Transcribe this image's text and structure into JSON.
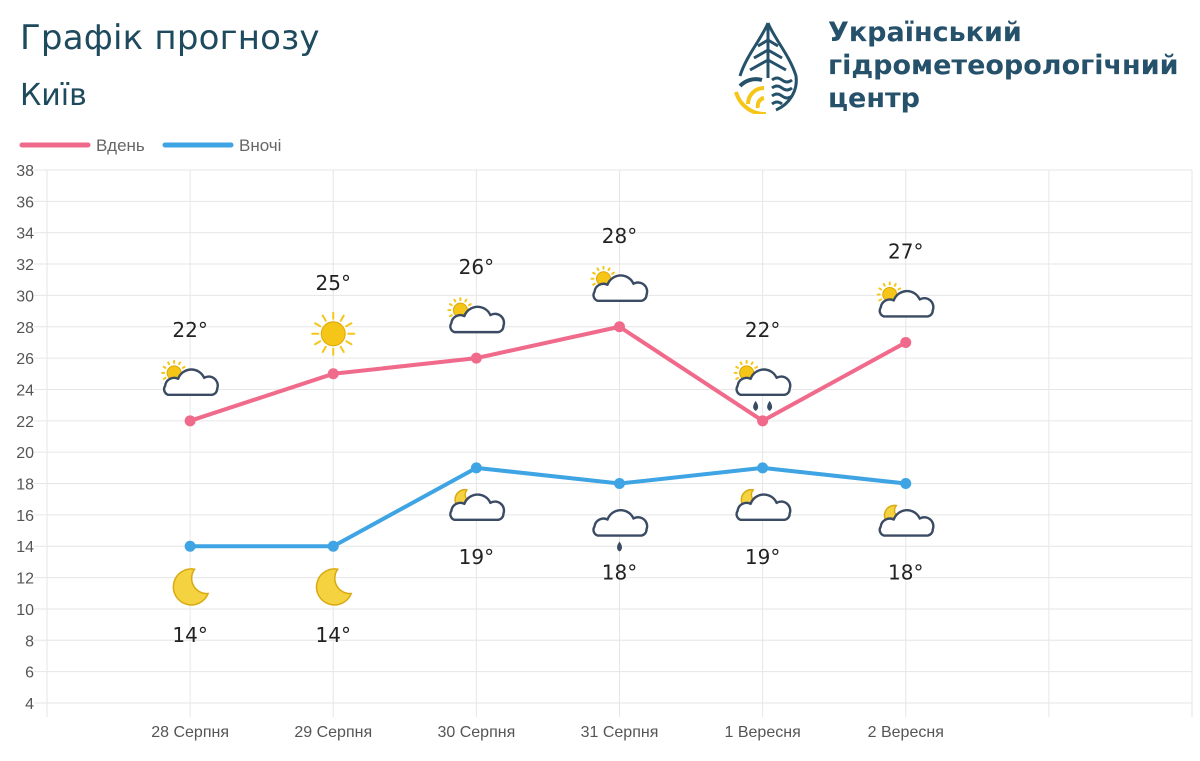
{
  "header": {
    "title": "Графік прогнозу",
    "city": "Київ"
  },
  "logo": {
    "line1": "Український",
    "line2": "гідрометеорологічний",
    "line3": "центр"
  },
  "colors": {
    "day": "#f06b8b",
    "night": "#3fa4e3",
    "text_dark": "#1e4a5e",
    "grid": "#e6e6e6",
    "cloud_stroke": "#3a4b63",
    "sun": "#f5c518",
    "moon": "#f5d240"
  },
  "chart_data": {
    "type": "line",
    "categories": [
      "28 Серпня",
      "29 Серпня",
      "30 Серпня",
      "31 Серпня",
      "1 Вересня",
      "2 Вересня"
    ],
    "series": [
      {
        "name": "Вдень",
        "values": [
          22,
          25,
          26,
          28,
          22,
          27
        ]
      },
      {
        "name": "Вночі",
        "values": [
          14,
          14,
          19,
          18,
          19,
          18
        ]
      }
    ],
    "labels": {
      "day": [
        "22°",
        "25°",
        "26°",
        "28°",
        "22°",
        "27°"
      ],
      "night": [
        "14°",
        "14°",
        "19°",
        "18°",
        "19°",
        "18°"
      ]
    },
    "icons": {
      "day": [
        "partly-cloudy-day-icon",
        "sun-icon",
        "partly-cloudy-day-icon",
        "partly-cloudy-day-icon",
        "partly-cloudy-rain-icon",
        "partly-cloudy-day-icon"
      ],
      "night": [
        "moon-icon",
        "moon-icon",
        "partly-cloudy-night-icon",
        "cloudy-rain-icon",
        "partly-cloudy-night-icon",
        "partly-cloudy-night-icon"
      ]
    },
    "y_ticks": [
      "38",
      "36",
      "34",
      "32",
      "30",
      "28",
      "26",
      "24",
      "22",
      "20",
      "18",
      "16",
      "14",
      "12",
      "10",
      "8",
      "6",
      "4"
    ],
    "ylim": [
      4,
      38
    ],
    "ystep": 2,
    "grid": true,
    "legend": "top-left"
  }
}
